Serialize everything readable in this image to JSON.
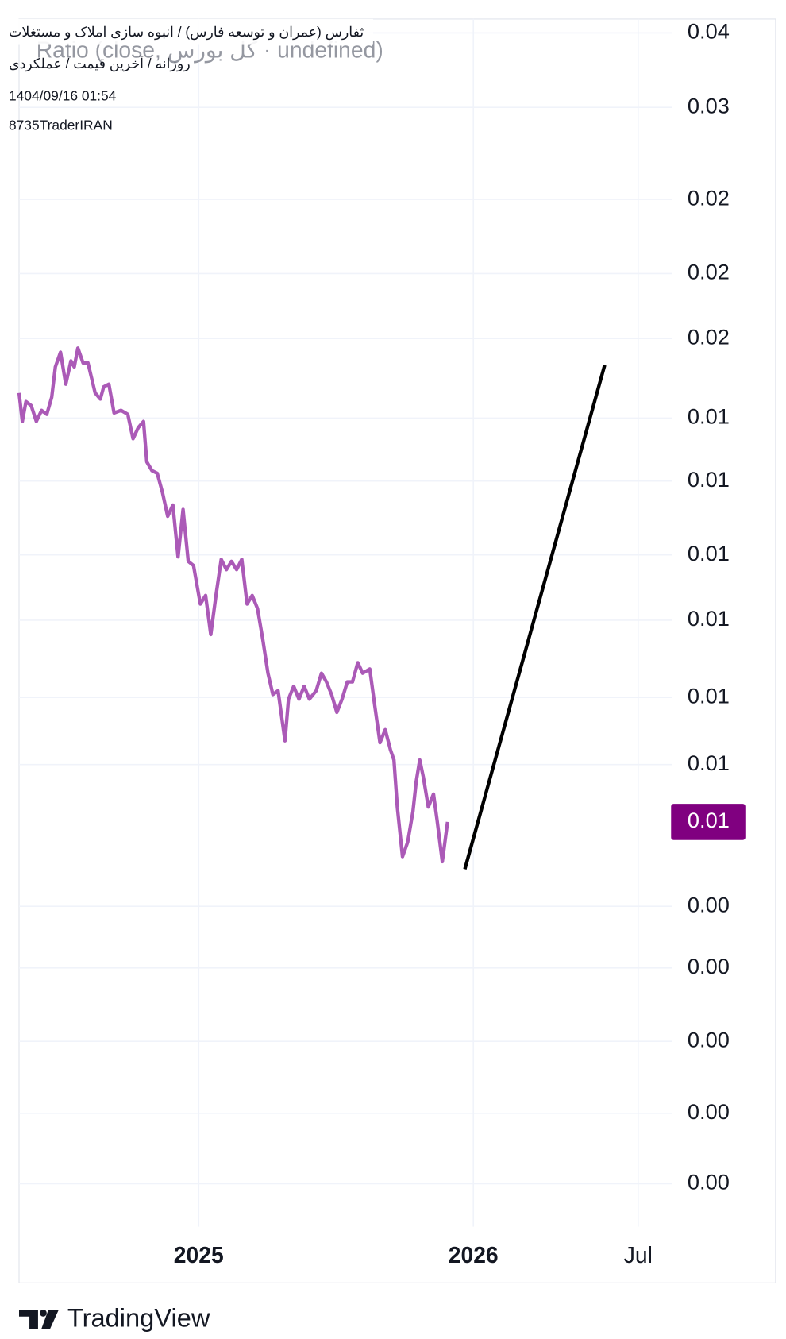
{
  "chart_data": {
    "type": "line",
    "title_lines": [
      "ثفارس (عمران و توسعه فارس) / انبوه سازی املاک و مستغلات",
      "روزانه / آخرین قیمت / عملکردی",
      "1404/09/16 01:54",
      "8735TraderIRAN"
    ],
    "subtitle": "Ratio (close, کل بورس · undefined)",
    "footer": "TradingView",
    "log_scale": true,
    "grid": true,
    "xlim": [
      2024.346,
      2026.723
    ],
    "xticks": [
      {
        "value": 2025,
        "label": "2025"
      },
      {
        "value": 2026,
        "label": "2026"
      },
      {
        "value": 2026.6,
        "label": "Jul"
      }
    ],
    "ylim": [
      0.00215,
      0.0372
    ],
    "yticks": [
      {
        "value": 0.036,
        "label": "0.04"
      },
      {
        "value": 0.0302,
        "label": "0.03"
      },
      {
        "value": 0.0243,
        "label": "0.02"
      },
      {
        "value": 0.0204,
        "label": "0.02"
      },
      {
        "value": 0.0175,
        "label": "0.02"
      },
      {
        "value": 0.0145,
        "label": "0.01"
      },
      {
        "value": 0.0125,
        "label": "0.01"
      },
      {
        "value": 0.0105,
        "label": "0.01"
      },
      {
        "value": 0.009,
        "label": "0.01"
      },
      {
        "value": 0.0075,
        "label": "0.01"
      },
      {
        "value": 0.0064,
        "label": "0.01"
      },
      {
        "value": 0.00458,
        "label": "0.00"
      },
      {
        "value": 0.00396,
        "label": "0.00"
      },
      {
        "value": 0.00333,
        "label": "0.00"
      },
      {
        "value": 0.00281,
        "label": "0.00"
      },
      {
        "value": 0.00238,
        "label": "0.00"
      }
    ],
    "series": [
      {
        "color": "#ab5ab7",
        "x": [
          2024.346,
          2024.358,
          2024.371,
          2024.39,
          2024.409,
          2024.428,
          2024.447,
          2024.465,
          2024.478,
          2024.497,
          2024.516,
          2024.535,
          2024.547,
          2024.56,
          2024.579,
          2024.597,
          2024.623,
          2024.642,
          2024.654,
          2024.673,
          2024.692,
          2024.717,
          2024.742,
          2024.761,
          2024.78,
          2024.799,
          2024.811,
          2024.83,
          2024.849,
          2024.868,
          2024.887,
          2024.906,
          2024.925,
          2024.943,
          2024.962,
          2024.981,
          2025.006,
          2025.025,
          2025.044,
          2025.063,
          2025.082,
          2025.101,
          2025.119,
          2025.138,
          2025.157,
          2025.176,
          2025.195,
          2025.214,
          2025.233,
          2025.252,
          2025.27,
          2025.289,
          2025.314,
          2025.327,
          2025.346,
          2025.365,
          2025.384,
          2025.403,
          2025.428,
          2025.447,
          2025.465,
          2025.484,
          2025.503,
          2025.522,
          2025.541,
          2025.56,
          2025.579,
          2025.597,
          2025.623,
          2025.642,
          2025.66,
          2025.679,
          2025.698,
          2025.711,
          2025.723,
          2025.742,
          2025.761,
          2025.78,
          2025.792,
          2025.805,
          2025.818,
          2025.836,
          2025.855,
          2025.868,
          2025.887,
          2025.906
        ],
        "values": [
          0.01539,
          0.01439,
          0.01508,
          0.01494,
          0.01439,
          0.01477,
          0.01463,
          0.01523,
          0.01636,
          0.01694,
          0.01571,
          0.0166,
          0.01636,
          0.01711,
          0.01652,
          0.01652,
          0.01539,
          0.01517,
          0.01561,
          0.01571,
          0.01468,
          0.01477,
          0.01463,
          0.01381,
          0.01418,
          0.01439,
          0.01308,
          0.01281,
          0.01273,
          0.01217,
          0.0115,
          0.01181,
          0.01045,
          0.01169,
          0.01034,
          0.01024,
          0.00935,
          0.00954,
          0.0087,
          0.00954,
          0.01039,
          0.01014,
          0.01034,
          0.01014,
          0.01039,
          0.00935,
          0.00954,
          0.00925,
          0.00861,
          0.00794,
          0.00755,
          0.00762,
          0.00677,
          0.00747,
          0.0077,
          0.00747,
          0.0077,
          0.00747,
          0.00762,
          0.00794,
          0.00778,
          0.00755,
          0.00724,
          0.00747,
          0.00778,
          0.00778,
          0.00814,
          0.00794,
          0.00802,
          0.00732,
          0.00674,
          0.00695,
          0.00663,
          0.00647,
          0.00579,
          0.00515,
          0.00533,
          0.00573,
          0.00615,
          0.00647,
          0.00621,
          0.00579,
          0.00597,
          0.00561,
          0.00509,
          0.00559
        ]
      }
    ],
    "last_price": {
      "value": 0.00559,
      "label": "0.01",
      "color": "#800080"
    },
    "trend_line": {
      "color": "#000000",
      "x": [
        2025.969,
        2026.478
      ],
      "values": [
        0.005,
        0.01643
      ]
    }
  }
}
